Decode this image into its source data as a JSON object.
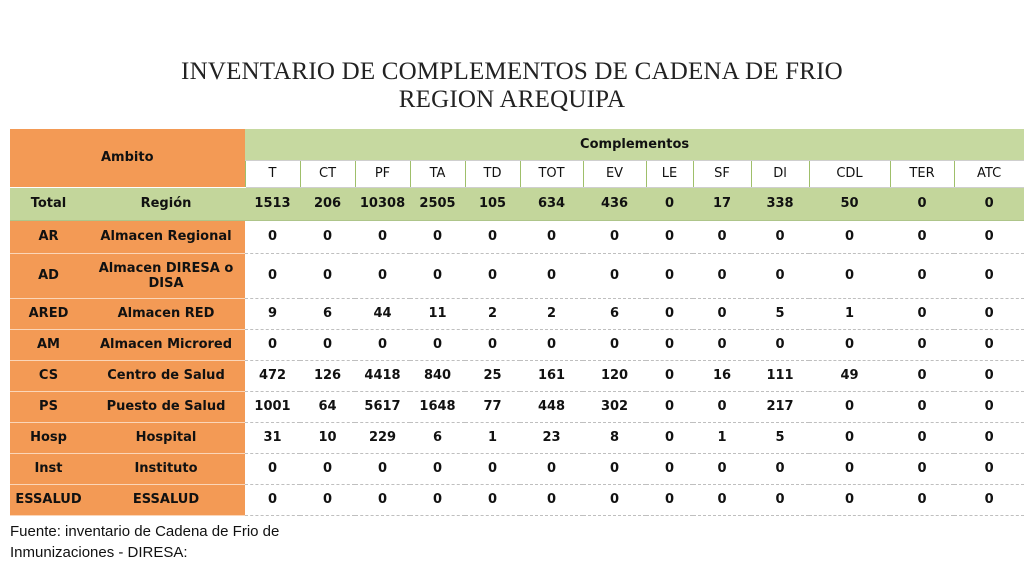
{
  "title": {
    "line1": "INVENTARIO DE COMPLEMENTOS  DE CADENA DE FRIO",
    "line2": "REGION AREQUIPA"
  },
  "table": {
    "ambito_header": "Ambito",
    "complementos_header": "Complementos",
    "columns": [
      "T",
      "CT",
      "PF",
      "TA",
      "TD",
      "TOT",
      "EV",
      "LE",
      "SF",
      "Dl",
      "CDL",
      "TER",
      "ATC"
    ],
    "total": {
      "code": "Total",
      "name": "Región",
      "values": [
        "1513",
        "206",
        "10308",
        "2505",
        "105",
        "634",
        "436",
        "0",
        "17",
        "338",
        "50",
        "0",
        "0"
      ]
    },
    "rows": [
      {
        "code": "AR",
        "name": "Almacen Regional",
        "values": [
          "0",
          "0",
          "0",
          "0",
          "0",
          "0",
          "0",
          "0",
          "0",
          "0",
          "0",
          "0",
          "0"
        ]
      },
      {
        "code": "AD",
        "name": "Almacen DIRESA o DISA",
        "values": [
          "0",
          "0",
          "0",
          "0",
          "0",
          "0",
          "0",
          "0",
          "0",
          "0",
          "0",
          "0",
          "0"
        ]
      },
      {
        "code": "ARED",
        "name": "Almacen RED",
        "values": [
          "9",
          "6",
          "44",
          "11",
          "2",
          "2",
          "6",
          "0",
          "0",
          "5",
          "1",
          "0",
          "0"
        ]
      },
      {
        "code": "AM",
        "name": "Almacen Microred",
        "values": [
          "0",
          "0",
          "0",
          "0",
          "0",
          "0",
          "0",
          "0",
          "0",
          "0",
          "0",
          "0",
          "0"
        ]
      },
      {
        "code": "CS",
        "name": "Centro de Salud",
        "values": [
          "472",
          "126",
          "4418",
          "840",
          "25",
          "161",
          "120",
          "0",
          "16",
          "111",
          "49",
          "0",
          "0"
        ]
      },
      {
        "code": "PS",
        "name": "Puesto de Salud",
        "values": [
          "1001",
          "64",
          "5617",
          "1648",
          "77",
          "448",
          "302",
          "0",
          "0",
          "217",
          "0",
          "0",
          "0"
        ]
      },
      {
        "code": "Hosp",
        "name": "Hospital",
        "values": [
          "31",
          "10",
          "229",
          "6",
          "1",
          "23",
          "8",
          "0",
          "1",
          "5",
          "0",
          "0",
          "0"
        ]
      },
      {
        "code": "Inst",
        "name": "Instituto",
        "values": [
          "0",
          "0",
          "0",
          "0",
          "0",
          "0",
          "0",
          "0",
          "0",
          "0",
          "0",
          "0",
          "0"
        ]
      },
      {
        "code": "ESSALUD",
        "name": "ESSALUD",
        "values": [
          "0",
          "0",
          "0",
          "0",
          "0",
          "0",
          "0",
          "0",
          "0",
          "0",
          "0",
          "0",
          "0"
        ]
      }
    ]
  },
  "footer": {
    "line1": "Fuente: inventario de Cadena de Frio de",
    "line2": "Inmunizaciones - DIRESA:"
  }
}
